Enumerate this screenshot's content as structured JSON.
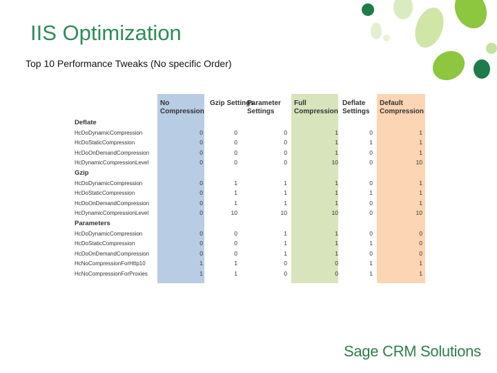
{
  "slide": {
    "title": "IIS Optimization",
    "subtitle": "Top 10 Performance Tweaks (No specific Order)",
    "brand": "Sage CRM Solutions"
  },
  "colors": {
    "title": "#2e8b57",
    "leaf_green": "#8dc63f",
    "leaf_dark": "#1e7b4a",
    "col_blue": "#b8cce4",
    "col_green": "#d8e4bc",
    "col_orange": "#fcd5b4"
  },
  "table": {
    "headers": [
      "No Compression",
      "Gzip Settings",
      "Parameter Settings",
      "Full Compression",
      "Deflate Settings",
      "Default Compression"
    ],
    "groups": [
      {
        "name": "Deflate",
        "rows": [
          {
            "label": "HcDoDynamicCompression",
            "values": [
              "0",
              "0",
              "0",
              "1",
              "0",
              "1"
            ]
          },
          {
            "label": "HcDoStaticCompression",
            "values": [
              "0",
              "0",
              "0",
              "1",
              "1",
              "1"
            ]
          },
          {
            "label": "HcDoOnDemandCompression",
            "values": [
              "0",
              "0",
              "0",
              "1",
              "0",
              "1"
            ]
          },
          {
            "label": "HcDynamicCompressionLevel",
            "values": [
              "0",
              "0",
              "0",
              "10",
              "0",
              "10"
            ]
          }
        ]
      },
      {
        "name": "Gzip",
        "rows": [
          {
            "label": "HcDoDynamicCompression",
            "values": [
              "0",
              "1",
              "1",
              "1",
              "0",
              "1"
            ]
          },
          {
            "label": "HcDoStaticCompression",
            "values": [
              "0",
              "1",
              "1",
              "1",
              "1",
              "1"
            ]
          },
          {
            "label": "HcDoOnDemandCompression",
            "values": [
              "0",
              "1",
              "1",
              "1",
              "0",
              "1"
            ]
          },
          {
            "label": "HcDynamicCompressionLevel",
            "values": [
              "0",
              "10",
              "10",
              "10",
              "0",
              "10"
            ]
          }
        ]
      },
      {
        "name": "Parameters",
        "rows": [
          {
            "label": "HcDoDynamicCompression",
            "values": [
              "0",
              "0",
              "1",
              "1",
              "0",
              "0"
            ]
          },
          {
            "label": "HcDoStaticCompression",
            "values": [
              "0",
              "0",
              "1",
              "1",
              "1",
              "0"
            ]
          },
          {
            "label": "HcDoOnDemandCompression",
            "values": [
              "0",
              "0",
              "1",
              "1",
              "0",
              "0"
            ]
          },
          {
            "label": "HcNoCompressionForHttp10",
            "values": [
              "1",
              "1",
              "0",
              "0",
              "1",
              "1"
            ]
          },
          {
            "label": "HcNoCompressionForProxies",
            "values": [
              "1",
              "1",
              "0",
              "0",
              "1",
              "1"
            ]
          }
        ]
      }
    ]
  }
}
